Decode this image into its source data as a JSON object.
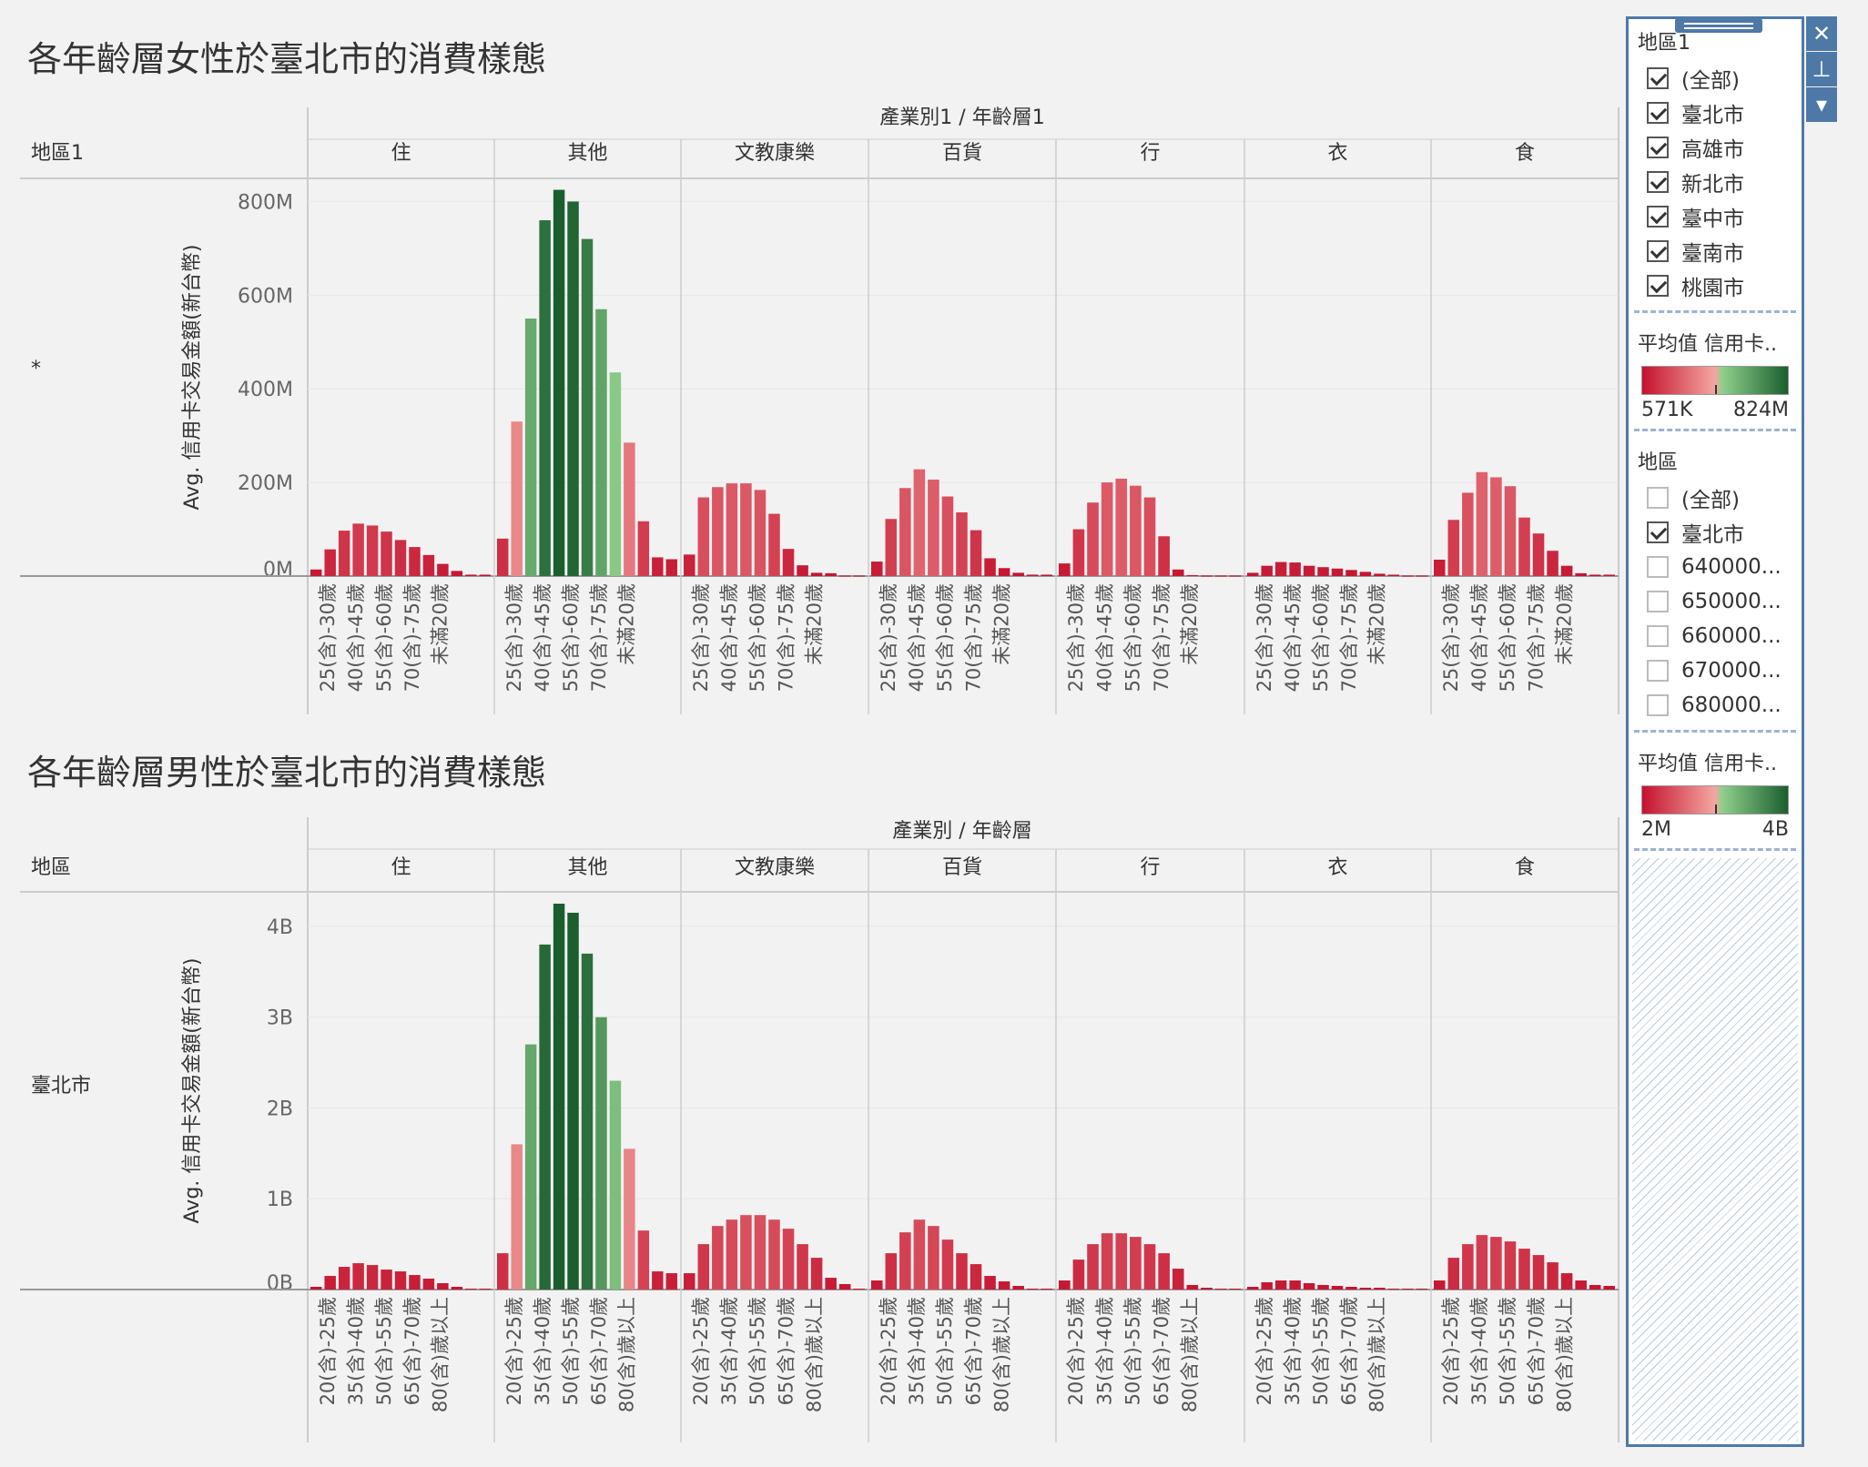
{
  "colors": {
    "low": "#c4122f",
    "mid_low": "#f4a6a0",
    "mid_high": "#8fcf8c",
    "high": "#1a5e2e",
    "grid": "#e6e6e6",
    "axis": "#cccccc"
  },
  "sidebar": {
    "filter1": {
      "title": "地區1",
      "items": [
        {
          "label": "(全部)",
          "checked": true
        },
        {
          "label": "臺北市",
          "checked": true
        },
        {
          "label": "高雄市",
          "checked": true
        },
        {
          "label": "新北市",
          "checked": true
        },
        {
          "label": "臺中市",
          "checked": true
        },
        {
          "label": "臺南市",
          "checked": true
        },
        {
          "label": "桃園市",
          "checked": true
        }
      ]
    },
    "legend1": {
      "title": "平均值 信用卡..",
      "min": "571K",
      "max": "824M"
    },
    "filter2": {
      "title": "地區",
      "items": [
        {
          "label": "(全部)",
          "checked": false
        },
        {
          "label": "臺北市",
          "checked": true
        },
        {
          "label": "640000...",
          "checked": false
        },
        {
          "label": "650000...",
          "checked": false
        },
        {
          "label": "660000...",
          "checked": false
        },
        {
          "label": "670000...",
          "checked": false
        },
        {
          "label": "680000...",
          "checked": false
        }
      ]
    },
    "legend2": {
      "title": "平均值 信用卡..",
      "min": "2M",
      "max": "4B"
    },
    "icons": [
      "close-icon",
      "pin-icon",
      "dropdown-icon"
    ]
  },
  "chart_data": [
    {
      "type": "bar",
      "title": "各年齡層女性於臺北市的消費樣態",
      "column_header": "產業別1 / 年齡層1",
      "row_header": "地區1",
      "row_label": "*",
      "ylabel": "Avg. 信用卡交易金額(新台幣)",
      "ylim": [
        0,
        830000000
      ],
      "yticks": [
        {
          "v": 0,
          "label": "0M"
        },
        {
          "v": 200000000,
          "label": "200M"
        },
        {
          "v": 400000000,
          "label": "400M"
        },
        {
          "v": 600000000,
          "label": "600M"
        },
        {
          "v": 800000000,
          "label": "800M"
        }
      ],
      "color_range": [
        571000,
        824000000
      ],
      "panels": [
        "住",
        "其他",
        "文教康樂",
        "百貨",
        "行",
        "衣",
        "食"
      ],
      "labeled_categories": [
        "25(含)-30歲",
        "40(含)-45歲",
        "55(含)-60歲",
        "70(含)-75歲",
        "未滿20歲"
      ],
      "values_m": [
        [
          14,
          57,
          97,
          112,
          108,
          95,
          77,
          62,
          45,
          26,
          11,
          3,
          3
        ],
        [
          80,
          330,
          550,
          760,
          825,
          800,
          720,
          570,
          435,
          285,
          117,
          40,
          36
        ],
        [
          46,
          168,
          190,
          198,
          198,
          184,
          133,
          58,
          23,
          7,
          6,
          1,
          1
        ],
        [
          31,
          122,
          188,
          228,
          206,
          170,
          136,
          98,
          38,
          17,
          7,
          3,
          3
        ],
        [
          27,
          100,
          157,
          200,
          208,
          193,
          168,
          85,
          14,
          2,
          1,
          1,
          1
        ],
        [
          7,
          22,
          30,
          29,
          22,
          19,
          16,
          13,
          9,
          5,
          3,
          1,
          1
        ],
        [
          35,
          120,
          178,
          222,
          211,
          192,
          125,
          91,
          54,
          22,
          6,
          3,
          3
        ]
      ]
    },
    {
      "type": "bar",
      "title": "各年齡層男性於臺北市的消費樣態",
      "column_header": "產業別 / 年齡層",
      "row_header": "地區",
      "row_label": "臺北市",
      "ylabel": "Avg. 信用卡交易金額(新台幣)",
      "ylim": [
        0,
        4280000000
      ],
      "yticks": [
        {
          "v": 0,
          "label": "0B"
        },
        {
          "v": 1000000000,
          "label": "1B"
        },
        {
          "v": 2000000000,
          "label": "2B"
        },
        {
          "v": 3000000000,
          "label": "3B"
        },
        {
          "v": 4000000000,
          "label": "4B"
        }
      ],
      "color_range": [
        2000000,
        4000000000
      ],
      "panels": [
        "住",
        "其他",
        "文教康樂",
        "百貨",
        "行",
        "衣",
        "食"
      ],
      "labeled_categories": [
        "20(含)-25歲",
        "35(含)-40歲",
        "50(含)-55歲",
        "65(含)-70歲",
        "80(含)歲以上"
      ],
      "values_b": [
        [
          0.03,
          0.15,
          0.25,
          0.29,
          0.27,
          0.22,
          0.2,
          0.16,
          0.12,
          0.07,
          0.03,
          0.01,
          0.01
        ],
        [
          0.4,
          1.6,
          2.7,
          3.8,
          4.25,
          4.15,
          3.7,
          3.0,
          2.3,
          1.55,
          0.65,
          0.2,
          0.18
        ],
        [
          0.18,
          0.5,
          0.7,
          0.77,
          0.82,
          0.82,
          0.77,
          0.67,
          0.5,
          0.35,
          0.13,
          0.06,
          0.01
        ],
        [
          0.1,
          0.4,
          0.63,
          0.77,
          0.7,
          0.55,
          0.4,
          0.28,
          0.15,
          0.09,
          0.04,
          0.01,
          0.01
        ],
        [
          0.1,
          0.33,
          0.5,
          0.62,
          0.62,
          0.58,
          0.5,
          0.4,
          0.23,
          0.05,
          0.02,
          0.01,
          0.01
        ],
        [
          0.03,
          0.08,
          0.1,
          0.1,
          0.07,
          0.05,
          0.04,
          0.03,
          0.02,
          0.02,
          0.01,
          0.01,
          0.01
        ],
        [
          0.1,
          0.35,
          0.5,
          0.6,
          0.58,
          0.53,
          0.45,
          0.38,
          0.3,
          0.18,
          0.1,
          0.05,
          0.04
        ]
      ]
    }
  ]
}
